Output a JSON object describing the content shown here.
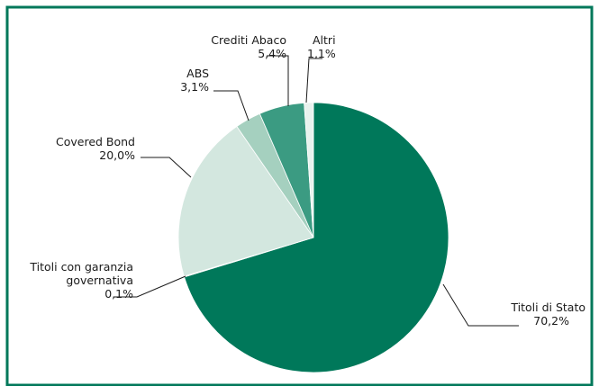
{
  "chart_data": {
    "type": "pie",
    "title": "",
    "slices": [
      {
        "label": "Titoli di Stato",
        "value_text": "70,2%",
        "value": 70.2,
        "color": "#00785a"
      },
      {
        "label": "Titoli con garanzia governativa",
        "value_text": "0,1%",
        "value": 0.1,
        "color": "#c8a23a"
      },
      {
        "label": "Covered Bond",
        "value_text": "20,0%",
        "value": 20.0,
        "color": "#d3e7df"
      },
      {
        "label": "ABS",
        "value_text": "3,1%",
        "value": 3.1,
        "color": "#a5d0bf"
      },
      {
        "label": "Crediti Abaco",
        "value_text": "5,4%",
        "value": 5.4,
        "color": "#3b9b82"
      },
      {
        "label": "Altri",
        "value_text": "1,1%",
        "value": 1.1,
        "color": "#e9f2ee"
      }
    ],
    "label_lines": {
      "Titoli di Stato": [
        "Titoli di Stato"
      ],
      "Titoli con garanzia governativa": [
        "Titoli con garanzia",
        "governativa"
      ],
      "Covered Bond": [
        "Covered Bond"
      ],
      "ABS": [
        "ABS"
      ],
      "Crediti Abaco": [
        "Crediti Abaco"
      ],
      "Altri": [
        "Altri"
      ]
    },
    "colors": {
      "frame": "#00785a",
      "leader": "#1a1a1a"
    }
  }
}
